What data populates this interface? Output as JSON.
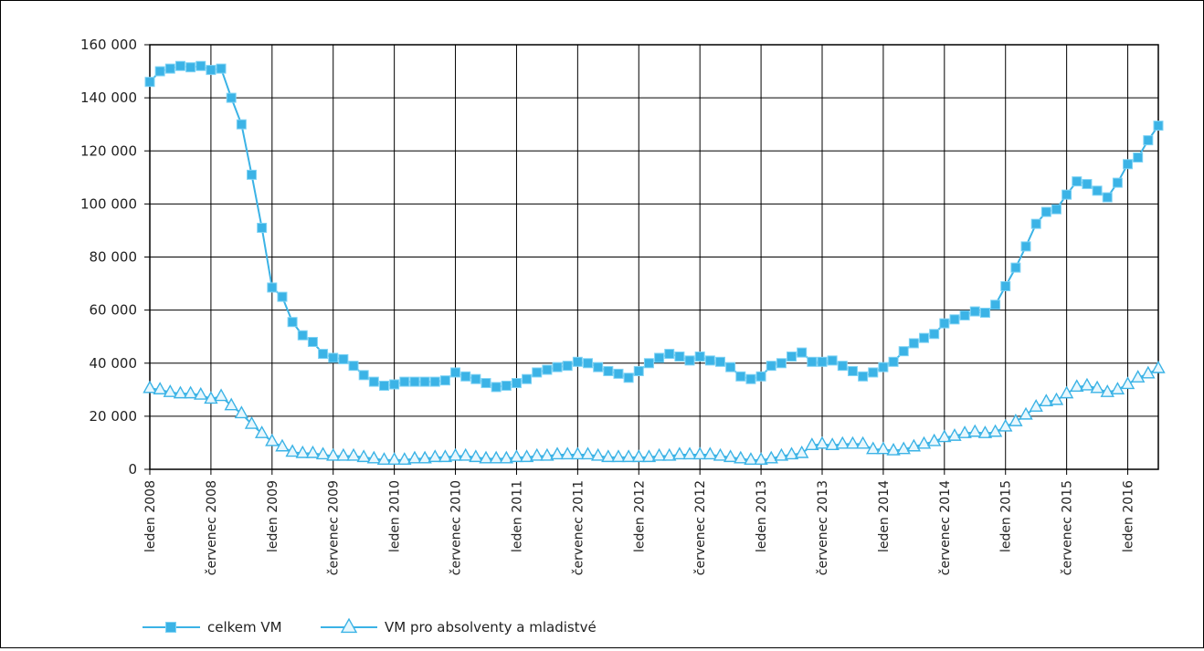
{
  "chart_data": {
    "type": "line",
    "title": "",
    "xlabel": "",
    "ylabel": "",
    "ylim": [
      0,
      160000
    ],
    "yticks": [
      0,
      20000,
      40000,
      60000,
      80000,
      100000,
      120000,
      140000,
      160000
    ],
    "ytick_labels": [
      "0",
      "20 000",
      "40 000",
      "60 000",
      "80 000",
      "100 000",
      "120 000",
      "140 000",
      "160 000"
    ],
    "x_start": "2008-01",
    "x_end": "2016-07",
    "x_tick_labels": [
      "leden 2008",
      "červenec 2008",
      "leden 2009",
      "červenec 2009",
      "leden 2010",
      "červenec 2010",
      "leden 2011",
      "červenec 2011",
      "leden 2012",
      "červenec 2012",
      "leden 2013",
      "červenec 2013",
      "leden 2014",
      "červenec 2014",
      "leden 2015",
      "červenec 2015",
      "leden 2016"
    ],
    "grid": true,
    "legend_position": "bottom-left",
    "series": [
      {
        "name": "celkem VM",
        "marker": "square",
        "color": "#3bb3e6",
        "values": [
          146000,
          150000,
          151000,
          152000,
          151500,
          152000,
          150500,
          151000,
          140000,
          130000,
          111000,
          91000,
          68500,
          65000,
          55500,
          50500,
          48000,
          43500,
          42000,
          41500,
          39000,
          35500,
          33000,
          31500,
          32000,
          33000,
          33000,
          33000,
          33000,
          33500,
          36500,
          35000,
          34000,
          32500,
          31000,
          31500,
          32500,
          34000,
          36500,
          37500,
          38500,
          39000,
          40500,
          40000,
          38500,
          37000,
          36000,
          34500,
          37000,
          40000,
          42000,
          43500,
          42500,
          41000,
          42500,
          41000,
          40500,
          38500,
          35000,
          34000,
          35000,
          39000,
          40000,
          42500,
          44000,
          40500,
          40500,
          41000,
          39000,
          37000,
          35000,
          36500,
          38500,
          40500,
          44500,
          47500,
          49500,
          51000,
          55000,
          56500,
          58000,
          59500,
          59000,
          62000,
          69000,
          76000,
          84000,
          92500,
          97000,
          98000,
          103500,
          108500,
          107500,
          105000,
          102500,
          108000,
          115000,
          117500,
          124000,
          129500
        ]
      },
      {
        "name": "VM pro absolventy a mladistvé",
        "marker": "triangle",
        "color": "#3bb3e6",
        "values": [
          30500,
          30000,
          29000,
          28500,
          28500,
          28000,
          26500,
          27500,
          24000,
          21000,
          17000,
          13500,
          10500,
          8500,
          6500,
          6000,
          6000,
          5500,
          5000,
          5000,
          5000,
          4500,
          4000,
          3500,
          3500,
          3500,
          4000,
          4000,
          4500,
          4500,
          5000,
          5000,
          4500,
          4000,
          4000,
          4000,
          4500,
          4500,
          5000,
          5000,
          5500,
          5500,
          5500,
          5500,
          5000,
          4500,
          4500,
          4500,
          4500,
          4500,
          5000,
          5000,
          5500,
          5500,
          5500,
          5500,
          5000,
          4500,
          4000,
          3500,
          3500,
          4000,
          5000,
          5500,
          6000,
          9000,
          9500,
          9000,
          9500,
          9500,
          9500,
          7500,
          7500,
          7000,
          7500,
          8500,
          9500,
          10500,
          12000,
          12500,
          13500,
          14000,
          13500,
          14000,
          16000,
          18000,
          20500,
          23500,
          25500,
          26000,
          28500,
          31000,
          31500,
          30500,
          29000,
          30000,
          32000,
          34500,
          36000,
          38000
        ]
      }
    ]
  }
}
